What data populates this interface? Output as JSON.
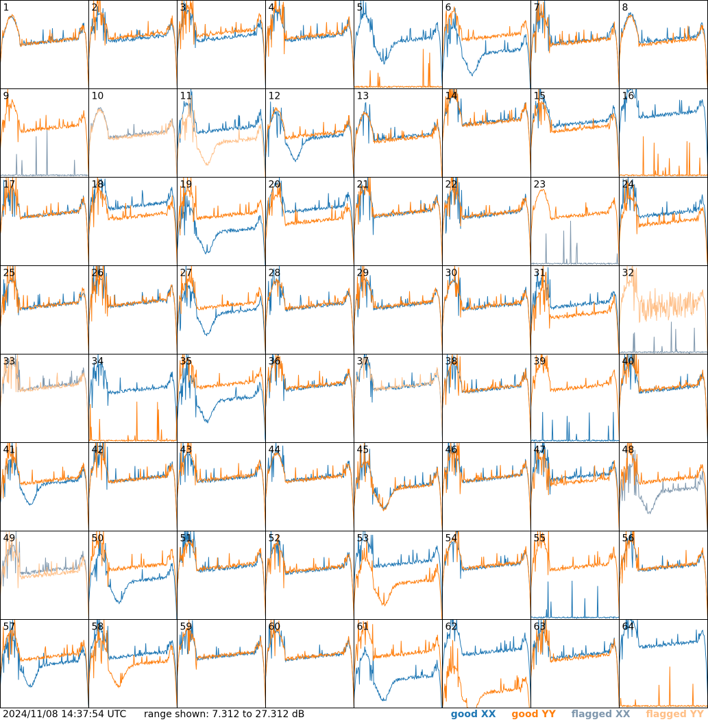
{
  "footer": {
    "timestamp": "2024/11/08 14:37:54 UTC",
    "range_label": "range shown: 7.312 to 27.312 dB"
  },
  "legend": {
    "good_xx": "good XX",
    "good_yy": "good YY",
    "flagged_xx": "flagged XX",
    "flagged_yy": "flagged YY"
  },
  "colors": {
    "good_xx": "#1f77b4",
    "good_yy": "#ff7f0e",
    "flagged_xx": "#7f97ad",
    "flagged_yy": "#ffbf87",
    "grid": "#000000"
  },
  "chart_data": {
    "type": "line",
    "layout": "small-multiples-8x8",
    "ylim": [
      7.312,
      27.312
    ],
    "yunit": "dB",
    "xlim": [
      0,
      1
    ],
    "panels": [
      {
        "label": "1",
        "xx": {
          "state": "good",
          "mid": 17.3,
          "shape": "flat"
        },
        "yy": {
          "state": "good",
          "mid": 17.3,
          "shape": "flat"
        }
      },
      {
        "label": "2",
        "xx": {
          "state": "good",
          "mid": 18.0,
          "shape": "normal"
        },
        "yy": {
          "state": "good",
          "mid": 18.6,
          "shape": "normal"
        }
      },
      {
        "label": "3",
        "xx": {
          "state": "good",
          "mid": 18.2,
          "shape": "normal"
        },
        "yy": {
          "state": "good",
          "mid": 19.3,
          "shape": "normal"
        }
      },
      {
        "label": "4",
        "xx": {
          "state": "good",
          "mid": 18.2,
          "shape": "normal"
        },
        "yy": {
          "state": "good",
          "mid": 18.6,
          "shape": "normal"
        }
      },
      {
        "label": "5",
        "xx": {
          "state": "good",
          "mid": 17.5,
          "shape": "dip"
        },
        "yy": {
          "state": "good",
          "mid": 7.4,
          "shape": "floor"
        }
      },
      {
        "label": "6",
        "xx": {
          "state": "good",
          "mid": 14.8,
          "shape": "dip"
        },
        "yy": {
          "state": "good",
          "mid": 18.4,
          "shape": "normal"
        }
      },
      {
        "label": "7",
        "xx": {
          "state": "good",
          "mid": 17.4,
          "shape": "normal"
        },
        "yy": {
          "state": "good",
          "mid": 17.2,
          "shape": "normal"
        }
      },
      {
        "label": "8",
        "xx": {
          "state": "good",
          "mid": 17.8,
          "shape": "flat"
        },
        "yy": {
          "state": "good",
          "mid": 17.2,
          "shape": "flat"
        }
      },
      {
        "label": "9",
        "xx": {
          "state": "flagged",
          "mid": 8.5,
          "shape": "floor"
        },
        "yy": {
          "state": "good",
          "mid": 17.7,
          "shape": "normal"
        }
      },
      {
        "label": "10",
        "xx": {
          "state": "flagged",
          "mid": 16.3,
          "shape": "flat"
        },
        "yy": {
          "state": "flagged",
          "mid": 16.0,
          "shape": "flat"
        }
      },
      {
        "label": "11",
        "xx": {
          "state": "good",
          "mid": 17.4,
          "shape": "normal"
        },
        "yy": {
          "state": "flagged",
          "mid": 14.6,
          "shape": "dip"
        }
      },
      {
        "label": "12",
        "xx": {
          "state": "good",
          "mid": 15.5,
          "shape": "dip"
        },
        "yy": {
          "state": "good",
          "mid": 16.2,
          "shape": "flat"
        }
      },
      {
        "label": "13",
        "xx": {
          "state": "good",
          "mid": 15.7,
          "shape": "normal"
        },
        "yy": {
          "state": "good",
          "mid": 15.3,
          "shape": "flat"
        }
      },
      {
        "label": "14",
        "xx": {
          "state": "good",
          "mid": 19.2,
          "shape": "normal"
        },
        "yy": {
          "state": "good",
          "mid": 19.0,
          "shape": "normal"
        }
      },
      {
        "label": "15",
        "xx": {
          "state": "good",
          "mid": 18.8,
          "shape": "normal"
        },
        "yy": {
          "state": "good",
          "mid": 17.6,
          "shape": "normal"
        }
      },
      {
        "label": "16",
        "xx": {
          "state": "good",
          "mid": 20.8,
          "shape": "normal"
        },
        "yy": {
          "state": "good",
          "mid": 7.4,
          "shape": "floor"
        }
      },
      {
        "label": "17",
        "xx": {
          "state": "good",
          "mid": 18.2,
          "shape": "normal"
        },
        "yy": {
          "state": "good",
          "mid": 18.2,
          "shape": "normal"
        }
      },
      {
        "label": "18",
        "xx": {
          "state": "good",
          "mid": 20.2,
          "shape": "normal"
        },
        "yy": {
          "state": "good",
          "mid": 17.8,
          "shape": "normal"
        }
      },
      {
        "label": "19",
        "xx": {
          "state": "good",
          "mid": 14.4,
          "shape": "dip"
        },
        "yy": {
          "state": "good",
          "mid": 18.0,
          "shape": "normal"
        }
      },
      {
        "label": "20",
        "xx": {
          "state": "good",
          "mid": 19.4,
          "shape": "normal"
        },
        "yy": {
          "state": "good",
          "mid": 16.7,
          "shape": "normal"
        }
      },
      {
        "label": "21",
        "xx": {
          "state": "good",
          "mid": 18.4,
          "shape": "normal"
        },
        "yy": {
          "state": "good",
          "mid": 18.5,
          "shape": "normal"
        }
      },
      {
        "label": "22",
        "xx": {
          "state": "good",
          "mid": 18.1,
          "shape": "normal"
        },
        "yy": {
          "state": "good",
          "mid": 18.3,
          "shape": "normal"
        }
      },
      {
        "label": "23",
        "xx": {
          "state": "flagged",
          "mid": 8.4,
          "shape": "floor"
        },
        "yy": {
          "state": "good",
          "mid": 18.0,
          "shape": "flat"
        }
      },
      {
        "label": "24",
        "xx": {
          "state": "good",
          "mid": 18.4,
          "shape": "normal"
        },
        "yy": {
          "state": "good",
          "mid": 16.4,
          "shape": "normal"
        }
      },
      {
        "label": "25",
        "xx": {
          "state": "good",
          "mid": 17.6,
          "shape": "normal"
        },
        "yy": {
          "state": "good",
          "mid": 17.6,
          "shape": "normal"
        }
      },
      {
        "label": "26",
        "xx": {
          "state": "good",
          "mid": 18.1,
          "shape": "normal"
        },
        "yy": {
          "state": "good",
          "mid": 18.2,
          "shape": "normal"
        }
      },
      {
        "label": "27",
        "xx": {
          "state": "good",
          "mid": 16.0,
          "shape": "dip"
        },
        "yy": {
          "state": "good",
          "mid": 17.6,
          "shape": "normal"
        }
      },
      {
        "label": "28",
        "xx": {
          "state": "good",
          "mid": 17.4,
          "shape": "normal"
        },
        "yy": {
          "state": "good",
          "mid": 17.6,
          "shape": "normal"
        }
      },
      {
        "label": "29",
        "xx": {
          "state": "good",
          "mid": 17.6,
          "shape": "normal"
        },
        "yy": {
          "state": "good",
          "mid": 17.8,
          "shape": "normal"
        }
      },
      {
        "label": "30",
        "xx": {
          "state": "good",
          "mid": 17.4,
          "shape": "normal"
        },
        "yy": {
          "state": "good",
          "mid": 17.6,
          "shape": "normal"
        }
      },
      {
        "label": "31",
        "xx": {
          "state": "good",
          "mid": 17.8,
          "shape": "normal"
        },
        "yy": {
          "state": "good",
          "mid": 15.5,
          "shape": "normal"
        }
      },
      {
        "label": "32",
        "xx": {
          "state": "flagged",
          "mid": 7.6,
          "shape": "floor"
        },
        "yy": {
          "state": "flagged",
          "mid": 17.4,
          "shape": "noisy"
        }
      },
      {
        "label": "33",
        "xx": {
          "state": "flagged",
          "mid": 19.3,
          "shape": "normal"
        },
        "yy": {
          "state": "flagged",
          "mid": 19.1,
          "shape": "normal"
        }
      },
      {
        "label": "34",
        "xx": {
          "state": "good",
          "mid": 18.6,
          "shape": "normal"
        },
        "yy": {
          "state": "good",
          "mid": 7.4,
          "shape": "floor"
        }
      },
      {
        "label": "35",
        "xx": {
          "state": "good",
          "mid": 16.3,
          "shape": "dip"
        },
        "yy": {
          "state": "good",
          "mid": 19.7,
          "shape": "normal"
        }
      },
      {
        "label": "36",
        "xx": {
          "state": "good",
          "mid": 19.2,
          "shape": "normal"
        },
        "yy": {
          "state": "good",
          "mid": 19.5,
          "shape": "normal"
        }
      },
      {
        "label": "37",
        "xx": {
          "state": "good",
          "mid": 19.2,
          "shape": "normal"
        },
        "yy": {
          "state": "flagged",
          "mid": 19.3,
          "shape": "normal"
        }
      },
      {
        "label": "38",
        "xx": {
          "state": "good",
          "mid": 18.7,
          "shape": "normal"
        },
        "yy": {
          "state": "good",
          "mid": 18.9,
          "shape": "normal"
        }
      },
      {
        "label": "39",
        "xx": {
          "state": "good",
          "mid": 7.4,
          "shape": "floor"
        },
        "yy": {
          "state": "good",
          "mid": 19.1,
          "shape": "normal"
        }
      },
      {
        "label": "40",
        "xx": {
          "state": "good",
          "mid": 18.7,
          "shape": "normal"
        },
        "yy": {
          "state": "good",
          "mid": 19.0,
          "shape": "normal"
        }
      },
      {
        "label": "41",
        "xx": {
          "state": "good",
          "mid": 17.4,
          "shape": "dip"
        },
        "yy": {
          "state": "good",
          "mid": 18.0,
          "shape": "normal"
        }
      },
      {
        "label": "42",
        "xx": {
          "state": "good",
          "mid": 18.4,
          "shape": "normal"
        },
        "yy": {
          "state": "good",
          "mid": 18.4,
          "shape": "normal"
        }
      },
      {
        "label": "43",
        "xx": {
          "state": "good",
          "mid": 18.4,
          "shape": "normal"
        },
        "yy": {
          "state": "good",
          "mid": 18.6,
          "shape": "normal"
        }
      },
      {
        "label": "44",
        "xx": {
          "state": "good",
          "mid": 18.6,
          "shape": "normal"
        },
        "yy": {
          "state": "good",
          "mid": 18.4,
          "shape": "flat"
        }
      },
      {
        "label": "45",
        "xx": {
          "state": "good",
          "mid": 16.6,
          "shape": "dip"
        },
        "yy": {
          "state": "good",
          "mid": 16.4,
          "shape": "dip"
        }
      },
      {
        "label": "46",
        "xx": {
          "state": "good",
          "mid": 18.5,
          "shape": "normal"
        },
        "yy": {
          "state": "good",
          "mid": 18.6,
          "shape": "normal"
        }
      },
      {
        "label": "47",
        "xx": {
          "state": "good",
          "mid": 18.9,
          "shape": "normal"
        },
        "yy": {
          "state": "good",
          "mid": 17.8,
          "shape": "normal"
        }
      },
      {
        "label": "48",
        "xx": {
          "state": "flagged",
          "mid": 15.7,
          "shape": "dip"
        },
        "yy": {
          "state": "good",
          "mid": 18.2,
          "shape": "normal"
        }
      },
      {
        "label": "49",
        "xx": {
          "state": "flagged",
          "mid": 17.7,
          "shape": "normal"
        },
        "yy": {
          "state": "flagged",
          "mid": 16.8,
          "shape": "normal"
        }
      },
      {
        "label": "50",
        "xx": {
          "state": "good",
          "mid": 15.4,
          "shape": "dip"
        },
        "yy": {
          "state": "good",
          "mid": 18.5,
          "shape": "normal"
        }
      },
      {
        "label": "51",
        "xx": {
          "state": "good",
          "mid": 18.2,
          "shape": "normal"
        },
        "yy": {
          "state": "good",
          "mid": 18.6,
          "shape": "normal"
        }
      },
      {
        "label": "52",
        "xx": {
          "state": "good",
          "mid": 17.8,
          "shape": "normal"
        },
        "yy": {
          "state": "good",
          "mid": 18.0,
          "shape": "normal"
        }
      },
      {
        "label": "53",
        "xx": {
          "state": "good",
          "mid": 19.3,
          "shape": "normal"
        },
        "yy": {
          "state": "good",
          "mid": 14.8,
          "shape": "dip"
        }
      },
      {
        "label": "54",
        "xx": {
          "state": "good",
          "mid": 18.6,
          "shape": "normal"
        },
        "yy": {
          "state": "good",
          "mid": 18.8,
          "shape": "normal"
        }
      },
      {
        "label": "55",
        "xx": {
          "state": "good",
          "mid": 8.0,
          "shape": "floor"
        },
        "yy": {
          "state": "good",
          "mid": 18.5,
          "shape": "normal"
        }
      },
      {
        "label": "56",
        "xx": {
          "state": "good",
          "mid": 18.4,
          "shape": "normal"
        },
        "yy": {
          "state": "good",
          "mid": 18.6,
          "shape": "normal"
        }
      },
      {
        "label": "57",
        "xx": {
          "state": "good",
          "mid": 16.5,
          "shape": "dip"
        },
        "yy": {
          "state": "good",
          "mid": 18.2,
          "shape": "normal"
        }
      },
      {
        "label": "58",
        "xx": {
          "state": "good",
          "mid": 18.6,
          "shape": "normal"
        },
        "yy": {
          "state": "good",
          "mid": 16.5,
          "shape": "dip"
        }
      },
      {
        "label": "59",
        "xx": {
          "state": "good",
          "mid": 18.4,
          "shape": "normal"
        },
        "yy": {
          "state": "good",
          "mid": 18.6,
          "shape": "normal"
        }
      },
      {
        "label": "60",
        "xx": {
          "state": "good",
          "mid": 18.2,
          "shape": "normal"
        },
        "yy": {
          "state": "good",
          "mid": 18.4,
          "shape": "normal"
        }
      },
      {
        "label": "61",
        "xx": {
          "state": "good",
          "mid": 13.2,
          "shape": "dip"
        },
        "yy": {
          "state": "good",
          "mid": 18.8,
          "shape": "normal"
        }
      },
      {
        "label": "62",
        "xx": {
          "state": "good",
          "mid": 19.3,
          "shape": "normal"
        },
        "yy": {
          "state": "good",
          "mid": 10.2,
          "shape": "dip"
        }
      },
      {
        "label": "63",
        "xx": {
          "state": "good",
          "mid": 18.5,
          "shape": "normal"
        },
        "yy": {
          "state": "good",
          "mid": 18.0,
          "shape": "normal"
        }
      },
      {
        "label": "64",
        "xx": {
          "state": "good",
          "mid": 21.0,
          "shape": "normal"
        },
        "yy": {
          "state": "good",
          "mid": 7.4,
          "shape": "floor"
        }
      }
    ]
  }
}
